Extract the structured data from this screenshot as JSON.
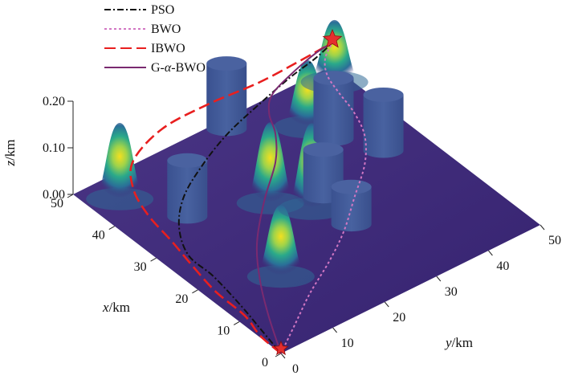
{
  "chart_data": {
    "type": "line",
    "x_axis": {
      "label": "x/km",
      "ticks": [
        "0",
        "10",
        "20",
        "30",
        "40",
        "50"
      ],
      "range": [
        0,
        50
      ]
    },
    "y_axis": {
      "label": "y/km",
      "ticks": [
        "0",
        "10",
        "20",
        "30",
        "40",
        "50"
      ],
      "range": [
        0,
        50
      ]
    },
    "z_axis": {
      "label": "z/km",
      "ticks": [
        "0.00",
        "0.10",
        "0.20"
      ],
      "range": [
        0,
        0.2
      ]
    },
    "legend_position": "top-left",
    "start": {
      "x": 0,
      "y": 0,
      "z": 0
    },
    "goal": {
      "x": 50,
      "y": 50,
      "z": 0.05
    },
    "terrain_peaks": [
      {
        "x": 45,
        "y": 5,
        "height": 0.16
      },
      {
        "x": 30,
        "y": 22,
        "height": 0.17
      },
      {
        "x": 15,
        "y": 12,
        "height": 0.15
      },
      {
        "x": 41,
        "y": 38,
        "height": 0.14
      },
      {
        "x": 47,
        "y": 48,
        "height": 0.13
      },
      {
        "x": 25,
        "y": 26,
        "height": 0.18
      }
    ],
    "cylinder_obstacles": [
      {
        "x": 48,
        "y": 28,
        "height": 0.14
      },
      {
        "x": 35,
        "y": 10,
        "height": 0.12
      },
      {
        "x": 36,
        "y": 39,
        "height": 0.13
      },
      {
        "x": 29,
        "y": 43,
        "height": 0.12
      },
      {
        "x": 26,
        "y": 29,
        "height": 0.1
      },
      {
        "x": 18,
        "y": 28,
        "height": 0.08
      }
    ],
    "series": [
      {
        "name": "PSO",
        "color": "#111111",
        "dash": "8,3,2,3",
        "points": [
          [
            0,
            0
          ],
          [
            6,
            1
          ],
          [
            12,
            2
          ],
          [
            20,
            3
          ],
          [
            26,
            3
          ],
          [
            32,
            6
          ],
          [
            37,
            11
          ],
          [
            41,
            18
          ],
          [
            44,
            25
          ],
          [
            46,
            32
          ],
          [
            48,
            40
          ],
          [
            49,
            46
          ],
          [
            50,
            50
          ]
        ]
      },
      {
        "name": "BWO",
        "color": "#d277c3",
        "dash": "3,3",
        "points": [
          [
            0,
            0
          ],
          [
            4,
            6
          ],
          [
            8,
            12
          ],
          [
            12,
            19
          ],
          [
            16,
            25
          ],
          [
            21,
            31
          ],
          [
            26,
            37
          ],
          [
            31,
            41
          ],
          [
            36,
            43
          ],
          [
            41,
            44
          ],
          [
            45,
            45
          ],
          [
            48,
            47
          ],
          [
            50,
            50
          ]
        ]
      },
      {
        "name": "IBWO",
        "color": "#e81f1f",
        "dash": "14,6",
        "points": [
          [
            0,
            0
          ],
          [
            5,
            0
          ],
          [
            10,
            1
          ],
          [
            17,
            1
          ],
          [
            24,
            2
          ],
          [
            30,
            3
          ],
          [
            37,
            4
          ],
          [
            43,
            6
          ],
          [
            48,
            10
          ],
          [
            51,
            18
          ],
          [
            51,
            27
          ],
          [
            50,
            36
          ],
          [
            50,
            45
          ],
          [
            50,
            50
          ]
        ]
      },
      {
        "name": "G-α-BWO",
        "color": "#7a2a70",
        "dash": "",
        "points": [
          [
            0,
            0
          ],
          [
            8,
            4
          ],
          [
            15,
            8
          ],
          [
            22,
            13
          ],
          [
            29,
            20
          ],
          [
            35,
            27
          ],
          [
            40,
            31
          ],
          [
            44,
            33
          ],
          [
            47,
            36
          ],
          [
            49,
            42
          ],
          [
            50,
            47
          ],
          [
            50,
            50
          ]
        ]
      }
    ]
  },
  "colors": {
    "surface_base": "#3d2a79",
    "cylinder": "#3f5896",
    "marker": "#e52e2e"
  }
}
